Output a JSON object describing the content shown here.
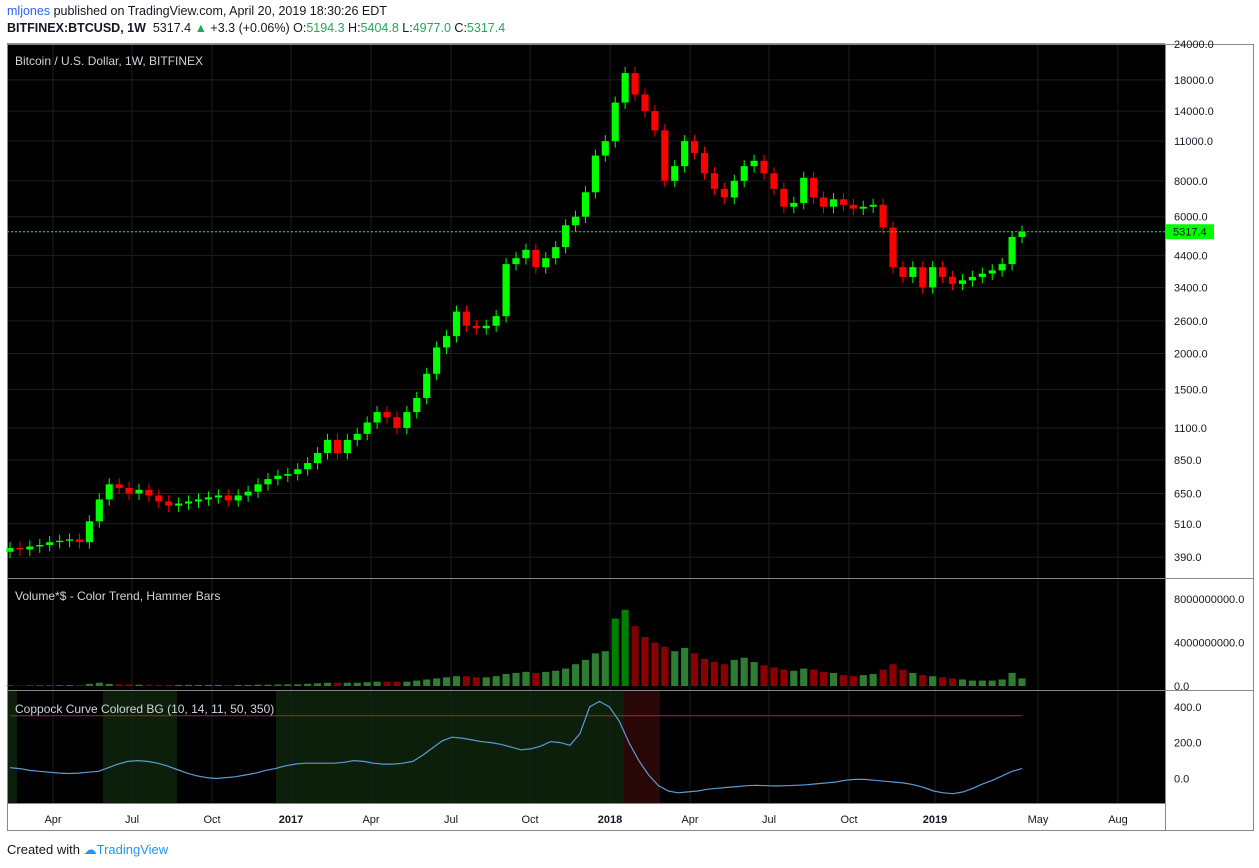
{
  "header": {
    "author": "mljones",
    "published": "published on TradingView.com, April 20, 2019 18:30:26 EDT",
    "symbol": "BITFINEX:BTCUSD, 1W",
    "last": "5317.4",
    "change_arrow": "▲",
    "change": "+3.3 (+0.06%)",
    "o_label": "O:",
    "o": "5194.3",
    "h_label": "H:",
    "h": "5404.8",
    "l_label": "L:",
    "l": "4977.0",
    "c_label": "C:",
    "c": "5317.4"
  },
  "footer": {
    "created": "Created with",
    "brand": "TradingView"
  },
  "colors": {
    "up": "#00ff00",
    "down": "#ff0000",
    "bg": "#000000",
    "grid": "#1e1e1e",
    "lastline": "#00ff00",
    "coppock": "#5b9bd5",
    "zero_line": "#b22222"
  },
  "chart_data": [
    {
      "type": "candlestick",
      "title": "Bitcoin / U.S. Dollar, 1W, BITFINEX",
      "scale": "log",
      "ylim": [
        330,
        24000
      ],
      "y_ticks": [
        "24000.0",
        "18000.0",
        "14000.0",
        "11000.0",
        "8000.0",
        "6000.0",
        "4400.0",
        "3400.0",
        "2600.0",
        "2000.0",
        "1500.0",
        "1100.0",
        "850.0",
        "650.0",
        "510.0",
        "390.0"
      ],
      "x_ticks": [
        "Apr",
        "Jul",
        "Oct",
        "2017",
        "Apr",
        "Jul",
        "Oct",
        "2018",
        "Apr",
        "Jul",
        "Oct",
        "2019",
        "May",
        "Aug"
      ],
      "last_price_label": "5317.4",
      "closes": [
        420,
        415,
        425,
        430,
        440,
        445,
        450,
        440,
        520,
        620,
        700,
        680,
        650,
        670,
        640,
        610,
        590,
        600,
        610,
        620,
        630,
        640,
        615,
        640,
        660,
        700,
        730,
        750,
        760,
        790,
        830,
        900,
        1000,
        900,
        1000,
        1050,
        1150,
        1250,
        1200,
        1100,
        1250,
        1400,
        1700,
        2100,
        2300,
        2800,
        2500,
        2450,
        2500,
        2700,
        4100,
        4300,
        4600,
        4000,
        4300,
        4700,
        5600,
        6000,
        7300,
        9800,
        11000,
        15000,
        19000,
        16000,
        14000,
        12000,
        8000,
        9000,
        11000,
        10000,
        8500,
        7500,
        7000,
        8000,
        9000,
        9400,
        8500,
        7500,
        6500,
        6700,
        8200,
        7000,
        6500,
        6900,
        6600,
        6400,
        6500,
        6600,
        5500,
        4000,
        3700,
        4000,
        3400,
        4000,
        3700,
        3500,
        3600,
        3700,
        3800,
        3900,
        4100,
        5100,
        5317
      ]
    },
    {
      "type": "bar",
      "title": "Volume*$ - Color Trend, Hammer Bars",
      "y_ticks": [
        "8000000000.0",
        "4000000000.0",
        "0.0"
      ],
      "ylim": [
        0,
        9000000000
      ],
      "values_billions": [
        0.05,
        0.05,
        0.05,
        0.06,
        0.06,
        0.07,
        0.08,
        0.08,
        0.2,
        0.3,
        0.2,
        0.15,
        0.15,
        0.12,
        0.12,
        0.1,
        0.1,
        0.1,
        0.1,
        0.1,
        0.1,
        0.1,
        0.1,
        0.1,
        0.1,
        0.12,
        0.12,
        0.14,
        0.15,
        0.15,
        0.2,
        0.25,
        0.3,
        0.3,
        0.3,
        0.3,
        0.35,
        0.4,
        0.4,
        0.4,
        0.4,
        0.5,
        0.6,
        0.7,
        0.8,
        0.9,
        0.9,
        0.8,
        0.8,
        0.9,
        1.1,
        1.2,
        1.3,
        1.2,
        1.3,
        1.4,
        1.6,
        2.0,
        2.4,
        3.0,
        3.2,
        6.2,
        7.0,
        5.5,
        4.5,
        4.0,
        3.6,
        3.2,
        3.5,
        3.0,
        2.5,
        2.2,
        2.0,
        2.4,
        2.6,
        2.2,
        1.9,
        1.7,
        1.5,
        1.4,
        1.6,
        1.5,
        1.3,
        1.2,
        1.0,
        0.9,
        1.0,
        1.1,
        1.5,
        2.0,
        1.5,
        1.2,
        1.0,
        0.9,
        0.8,
        0.7,
        0.6,
        0.5,
        0.5,
        0.5,
        0.6,
        1.2,
        0.7
      ]
    },
    {
      "type": "line",
      "title": "Coppock Curve Colored BG (10, 14, 11, 50, 350)",
      "y_ticks": [
        "400.0",
        "200.0",
        "0.0"
      ],
      "ylim": [
        -120,
        460
      ],
      "threshold": 350,
      "values": [
        60,
        55,
        45,
        40,
        35,
        30,
        28,
        30,
        35,
        40,
        60,
        80,
        95,
        100,
        95,
        85,
        70,
        50,
        30,
        15,
        5,
        0,
        5,
        10,
        20,
        30,
        45,
        55,
        70,
        80,
        85,
        85,
        85,
        85,
        90,
        100,
        95,
        85,
        80,
        80,
        85,
        95,
        130,
        170,
        210,
        230,
        225,
        215,
        205,
        200,
        190,
        175,
        160,
        165,
        180,
        205,
        200,
        185,
        250,
        400,
        430,
        400,
        320,
        200,
        100,
        20,
        -40,
        -70,
        -80,
        -75,
        -70,
        -60,
        -55,
        -50,
        -45,
        -40,
        -38,
        -40,
        -42,
        -40,
        -38,
        -35,
        -30,
        -25,
        -20,
        -10,
        -5,
        -5,
        -10,
        -15,
        -20,
        -25,
        -35,
        -50,
        -70,
        -80,
        -85,
        -75,
        -55,
        -30,
        -10,
        15,
        40,
        55
      ]
    }
  ]
}
